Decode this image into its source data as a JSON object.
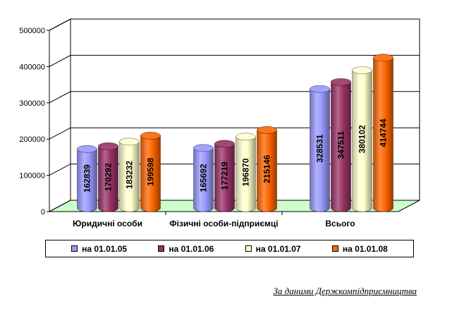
{
  "chart_data": {
    "type": "bar",
    "categories": [
      "Юридичні особи",
      "Фізичні особи-підприємці",
      "Всього"
    ],
    "series": [
      {
        "name": "на 01.01.05",
        "values": [
          162839,
          165692,
          328531
        ]
      },
      {
        "name": "на 01.01.06",
        "values": [
          170292,
          177219,
          347511
        ]
      },
      {
        "name": "на 01.01.07",
        "values": [
          183232,
          196870,
          380102
        ]
      },
      {
        "name": "на 01.01.08",
        "values": [
          199598,
          215146,
          414744
        ]
      }
    ],
    "ylim": [
      0,
      500000
    ],
    "yticks": [
      "0",
      "100000",
      "200000",
      "300000",
      "400000",
      "500000"
    ],
    "grid": true,
    "legend_position": "bottom",
    "three_d": true
  },
  "colors": {
    "series": [
      "#9999FF",
      "#993366",
      "#FFFFCC",
      "#FF6600"
    ],
    "wall": "#FFFFFF",
    "floor": "#CCFFCC"
  },
  "source_note": "За даними Держкомпідприємництва"
}
